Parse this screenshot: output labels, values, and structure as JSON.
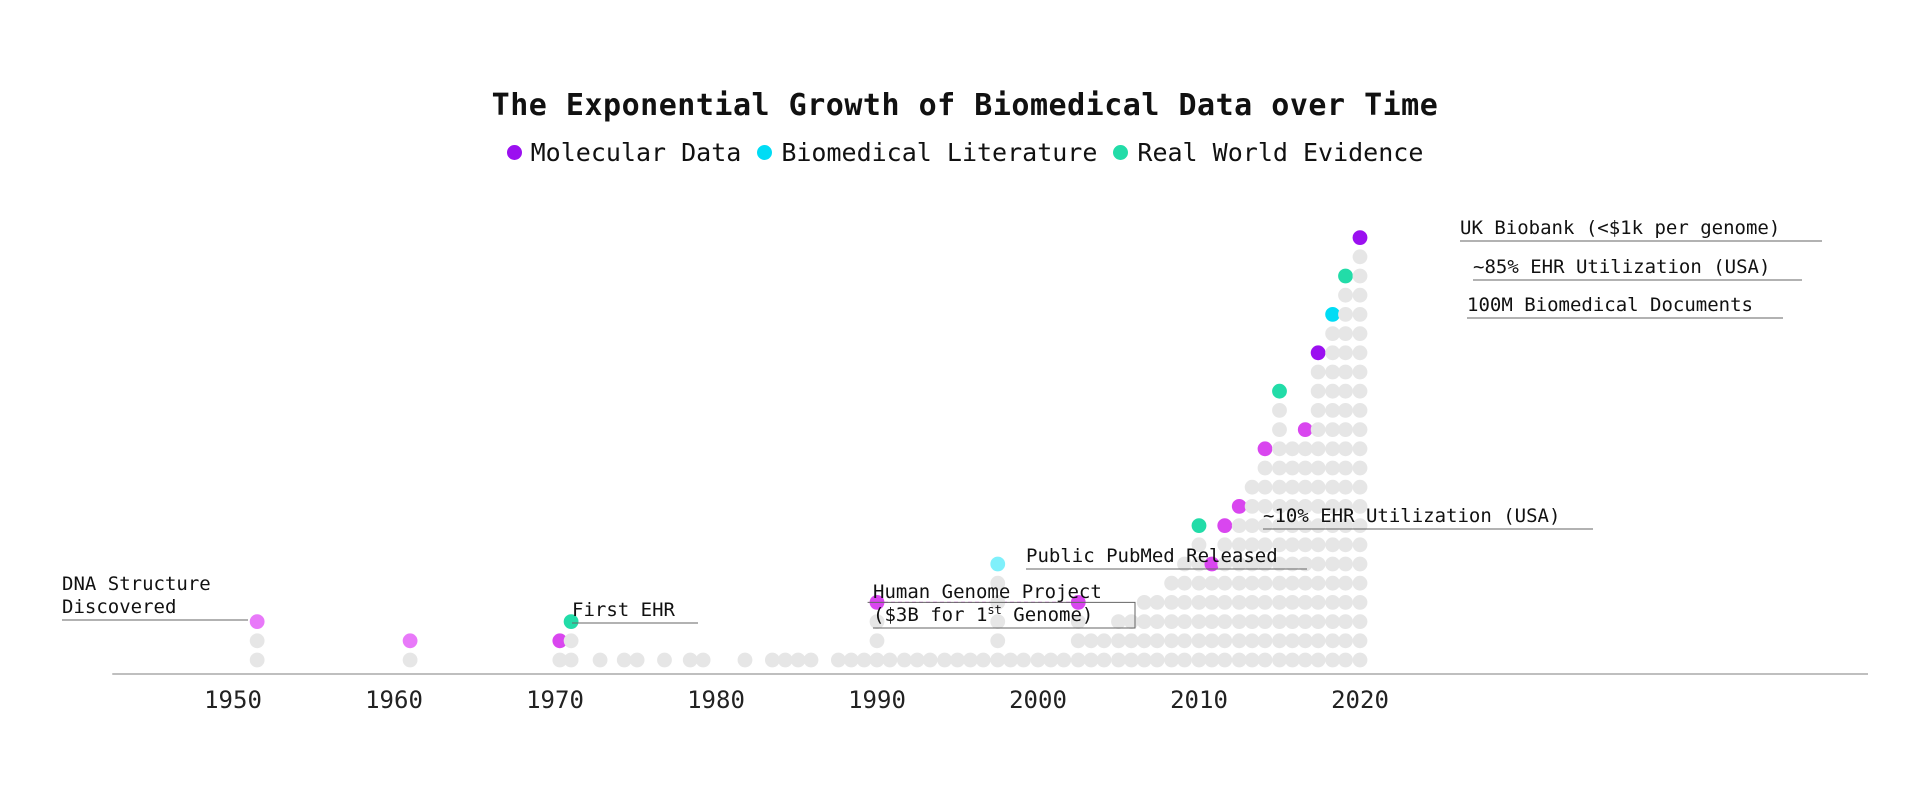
{
  "chart_data": {
    "type": "scatter",
    "title": "The Exponential Growth of Biomedical Data over Time",
    "xlabel": "",
    "ylabel": "",
    "xlim": [
      1942.5,
      2021
    ],
    "x_ticks": [
      1950,
      1960,
      1970,
      1980,
      1990,
      2000,
      2010,
      2020
    ],
    "legend_position": "top-center",
    "colors": {
      "molecular": "#9b10f0",
      "molecular_mid": "#d946ef",
      "molecular_light": "#e879f9",
      "literature": "#00dcf5",
      "literature_light": "#7ff0fb",
      "rwe": "#22dca8",
      "grey": "#e6e6e6",
      "axis": "#999999"
    },
    "legend": [
      {
        "name": "Molecular Data",
        "color": "#9b10f0"
      },
      {
        "name": "Biomedical Literature",
        "color": "#00dcf5"
      },
      {
        "name": "Real World Evidence",
        "color": "#22dca8"
      }
    ],
    "columns": [
      {
        "year": 1951.5,
        "count": 3
      },
      {
        "year": 1961.0,
        "count": 2
      },
      {
        "year": 1970.3,
        "count": 2
      },
      {
        "year": 1971.0,
        "count": 3
      },
      {
        "year": 1972.8,
        "count": 1
      },
      {
        "year": 1974.3,
        "count": 1
      },
      {
        "year": 1975.1,
        "count": 1
      },
      {
        "year": 1976.8,
        "count": 1
      },
      {
        "year": 1978.4,
        "count": 1
      },
      {
        "year": 1979.2,
        "count": 1
      },
      {
        "year": 1981.8,
        "count": 1
      },
      {
        "year": 1983.5,
        "count": 1
      },
      {
        "year": 1984.3,
        "count": 1
      },
      {
        "year": 1985.1,
        "count": 1
      },
      {
        "year": 1985.9,
        "count": 1
      },
      {
        "year": 1987.6,
        "count": 1
      },
      {
        "year": 1988.4,
        "count": 1
      },
      {
        "year": 1989.2,
        "count": 1
      },
      {
        "year": 1990.0,
        "count": 4
      },
      {
        "year": 1990.8,
        "count": 1
      },
      {
        "year": 1991.7,
        "count": 1
      },
      {
        "year": 1992.5,
        "count": 1
      },
      {
        "year": 1993.3,
        "count": 1
      },
      {
        "year": 1994.2,
        "count": 1
      },
      {
        "year": 1995.0,
        "count": 1
      },
      {
        "year": 1995.8,
        "count": 1
      },
      {
        "year": 1996.6,
        "count": 1
      },
      {
        "year": 1997.5,
        "count": 6
      },
      {
        "year": 1998.3,
        "count": 1
      },
      {
        "year": 1999.1,
        "count": 1
      },
      {
        "year": 2000.0,
        "count": 1
      },
      {
        "year": 2000.8,
        "count": 1
      },
      {
        "year": 2001.6,
        "count": 1
      },
      {
        "year": 2002.5,
        "count": 4
      },
      {
        "year": 2003.3,
        "count": 2
      },
      {
        "year": 2004.1,
        "count": 2
      },
      {
        "year": 2005.0,
        "count": 3
      },
      {
        "year": 2005.8,
        "count": 3
      },
      {
        "year": 2006.6,
        "count": 4
      },
      {
        "year": 2007.4,
        "count": 4
      },
      {
        "year": 2008.3,
        "count": 5
      },
      {
        "year": 2009.1,
        "count": 6
      },
      {
        "year": 2010.0,
        "count": 8
      },
      {
        "year": 2010.8,
        "count": 6
      },
      {
        "year": 2011.6,
        "count": 8
      },
      {
        "year": 2012.5,
        "count": 9
      },
      {
        "year": 2013.3,
        "count": 10
      },
      {
        "year": 2014.1,
        "count": 12
      },
      {
        "year": 2015.0,
        "count": 15
      },
      {
        "year": 2015.8,
        "count": 12
      },
      {
        "year": 2016.6,
        "count": 13
      },
      {
        "year": 2017.4,
        "count": 17
      },
      {
        "year": 2018.3,
        "count": 19
      },
      {
        "year": 2019.1,
        "count": 21
      },
      {
        "year": 2020.0,
        "count": 23
      }
    ],
    "highlights": [
      {
        "year": 1951.5,
        "color": "molecular_light"
      },
      {
        "year": 1961.0,
        "color": "molecular_light"
      },
      {
        "year": 1970.3,
        "color": "molecular_mid"
      },
      {
        "year": 1971.0,
        "color": "rwe"
      },
      {
        "year": 1990.0,
        "color": "molecular_mid"
      },
      {
        "year": 1997.5,
        "color": "literature_light"
      },
      {
        "year": 2002.5,
        "color": "molecular_mid"
      },
      {
        "year": 2010.0,
        "color": "rwe"
      },
      {
        "year": 2010.8,
        "color": "molecular_mid"
      },
      {
        "year": 2011.6,
        "color": "molecular_mid"
      },
      {
        "year": 2012.5,
        "color": "molecular_mid"
      },
      {
        "year": 2014.1,
        "color": "molecular_mid"
      },
      {
        "year": 2015.0,
        "color": "rwe"
      },
      {
        "year": 2016.6,
        "color": "molecular_mid"
      },
      {
        "year": 2017.4,
        "color": "molecular"
      },
      {
        "year": 2018.3,
        "color": "literature"
      },
      {
        "year": 2019.1,
        "color": "rwe"
      },
      {
        "year": 2020.0,
        "color": "molecular"
      }
    ],
    "annotations": [
      {
        "year": 1951.5,
        "lines": [
          "DNA Structure",
          "Discovered"
        ]
      },
      {
        "year": 1971.0,
        "lines": [
          "First EHR"
        ]
      },
      {
        "year": 1990.0,
        "lines": [
          "Human Genome Project",
          "($3B for 1st Genome)"
        ],
        "dashed_to": 2002.5
      },
      {
        "year": 1997.5,
        "lines": [
          "Public PubMed Released"
        ]
      },
      {
        "year": 2010.0,
        "lines": [
          "~10% EHR Utilization (USA)"
        ]
      },
      {
        "year": 2018.3,
        "lines": [
          "100M Biomedical Documents"
        ]
      },
      {
        "year": 2019.1,
        "lines": [
          "~85% EHR Utilization (USA)"
        ]
      },
      {
        "year": 2020.0,
        "lines": [
          "UK Biobank (<$1k per genome)"
        ]
      }
    ]
  }
}
